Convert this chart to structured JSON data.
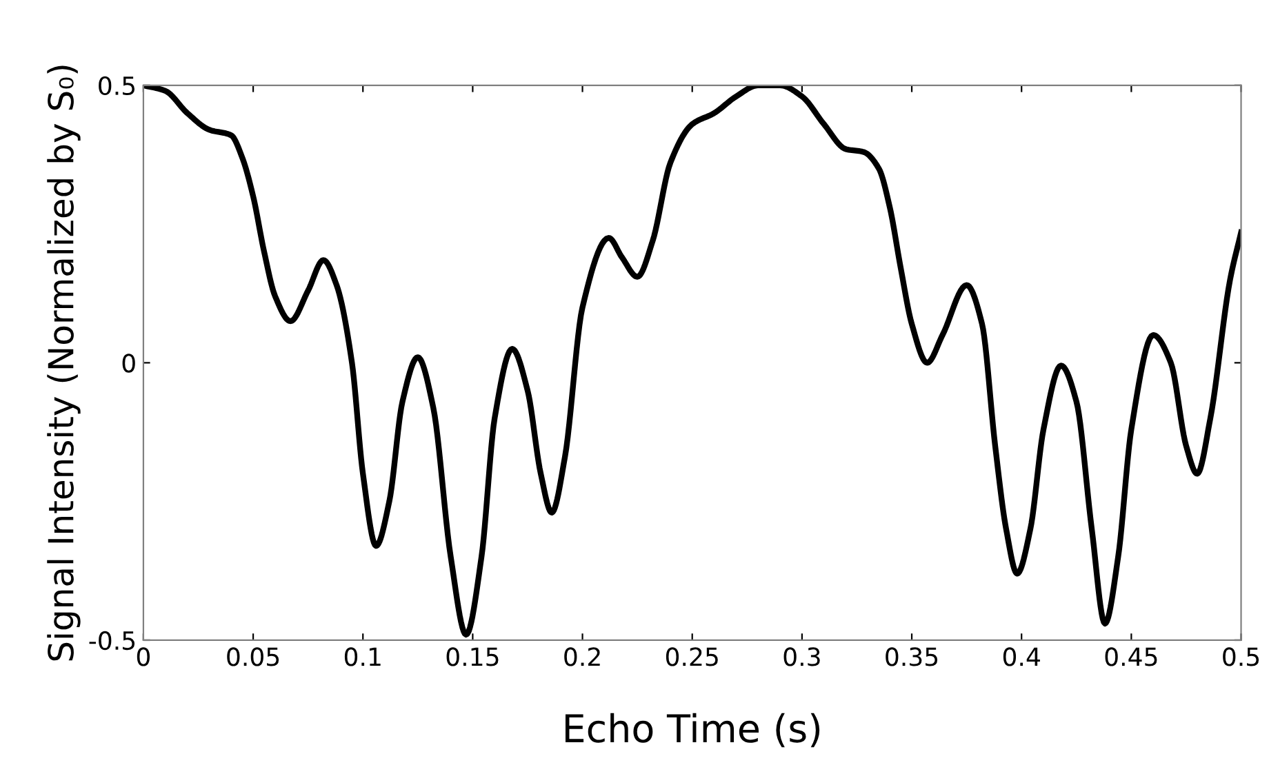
{
  "chart_data": {
    "type": "line",
    "xlabel": "Echo Time (s)",
    "ylabel": "Signal Intensity (Normalized by S₀)",
    "xlim": [
      0,
      0.5
    ],
    "ylim": [
      -0.5,
      0.5
    ],
    "xticks": [
      0,
      0.05,
      0.1,
      0.15,
      0.2,
      0.25,
      0.3,
      0.35,
      0.4,
      0.45,
      0.5
    ],
    "yticks": [
      {
        "value": -0.5,
        "label": "-0.5"
      },
      0,
      0.5
    ],
    "grid": false,
    "marker": "none",
    "line_style": "solid",
    "series": [
      {
        "color": "#000000",
        "x": [
          0,
          0.01,
          0.02,
          0.03,
          0.04,
          0.045,
          0.05,
          0.055,
          0.06,
          0.067,
          0.075,
          0.082,
          0.088,
          0.095,
          0.1,
          0.106,
          0.112,
          0.118,
          0.125,
          0.132,
          0.14,
          0.147,
          0.154,
          0.16,
          0.168,
          0.175,
          0.181,
          0.186,
          0.192,
          0.2,
          0.212,
          0.218,
          0.225,
          0.232,
          0.24,
          0.25,
          0.26,
          0.27,
          0.28,
          0.29,
          0.3,
          0.31,
          0.32,
          0.328,
          0.335,
          0.34,
          0.345,
          0.35,
          0.357,
          0.364,
          0.375,
          0.382,
          0.388,
          0.393,
          0.398,
          0.404,
          0.41,
          0.418,
          0.425,
          0.432,
          0.438,
          0.444,
          0.45,
          0.46,
          0.468,
          0.475,
          0.48,
          0.486,
          0.495,
          0.5
        ],
        "values": [
          0.5,
          0.49,
          0.45,
          0.42,
          0.41,
          0.37,
          0.3,
          0.2,
          0.12,
          0.075,
          0.13,
          0.185,
          0.14,
          0,
          -0.2,
          -0.33,
          -0.25,
          -0.07,
          0.01,
          -0.08,
          -0.35,
          -0.49,
          -0.35,
          -0.1,
          0.025,
          -0.05,
          -0.2,
          -0.27,
          -0.17,
          0.1,
          0.225,
          0.19,
          0.155,
          0.22,
          0.36,
          0.43,
          0.45,
          0.48,
          0.5,
          0.5,
          0.48,
          0.43,
          0.385,
          0.38,
          0.35,
          0.28,
          0.17,
          0.07,
          0,
          0.05,
          0.14,
          0.07,
          -0.15,
          -0.3,
          -0.38,
          -0.3,
          -0.12,
          -0.005,
          -0.07,
          -0.3,
          -0.47,
          -0.35,
          -0.12,
          0.05,
          0,
          -0.15,
          -0.2,
          -0.1,
          0.15,
          0.235
        ]
      }
    ]
  }
}
